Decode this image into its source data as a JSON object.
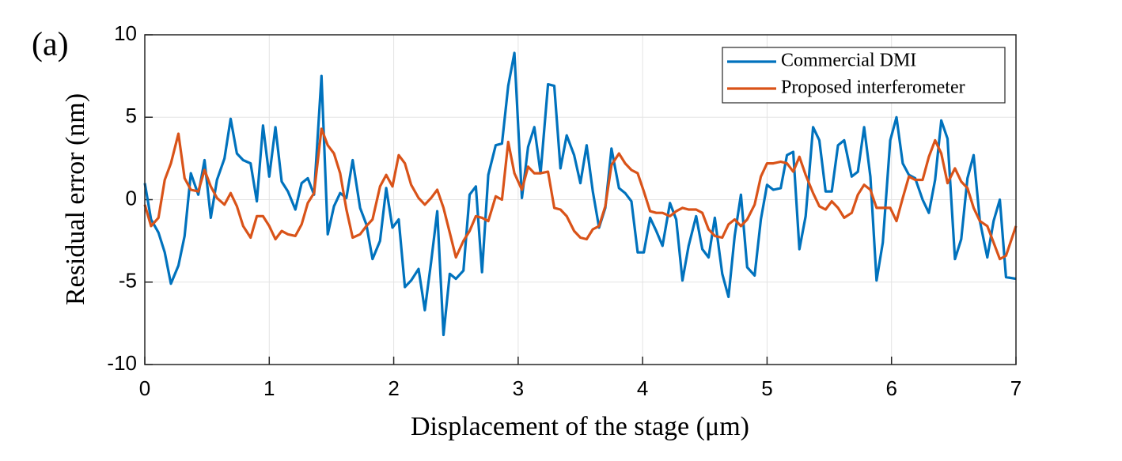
{
  "chart_data": {
    "type": "line",
    "annotation": "(a)",
    "xlabel": "Displacement of the stage (μm)",
    "ylabel": "Residual error (nm)",
    "xlim": [
      0,
      7
    ],
    "xticks": [
      0,
      1,
      2,
      3,
      4,
      5,
      6,
      7
    ],
    "ylim": [
      -10,
      10
    ],
    "yticks": [
      -10,
      -5,
      0,
      5,
      10
    ],
    "grid": true,
    "legend": "upper right",
    "x": [
      0,
      0.05,
      0.11,
      0.16,
      0.21,
      0.27,
      0.32,
      0.37,
      0.43,
      0.48,
      0.53,
      0.58,
      0.64,
      0.69,
      0.74,
      0.79,
      0.85,
      0.9,
      0.95,
      1.0,
      1.05,
      1.1,
      1.15,
      1.21,
      1.26,
      1.31,
      1.36,
      1.42,
      1.47,
      1.52,
      1.57,
      1.62,
      1.67,
      1.73,
      1.78,
      1.83,
      1.89,
      1.94,
      1.99,
      2.04,
      2.09,
      2.14,
      2.2,
      2.25,
      2.3,
      2.35,
      2.4,
      2.45,
      2.5,
      2.56,
      2.61,
      2.66,
      2.71,
      2.76,
      2.82,
      2.87,
      2.92,
      2.97,
      3.03,
      3.08,
      3.13,
      3.18,
      3.24,
      3.29,
      3.34,
      3.39,
      3.45,
      3.5,
      3.55,
      3.6,
      3.65,
      3.7,
      3.75,
      3.81,
      3.86,
      3.91,
      3.96,
      4.01,
      4.06,
      4.11,
      4.16,
      4.22,
      4.27,
      4.32,
      4.37,
      4.43,
      4.48,
      4.53,
      4.58,
      4.64,
      4.69,
      4.74,
      4.79,
      4.84,
      4.9,
      4.95,
      5.0,
      5.05,
      5.11,
      5.16,
      5.21,
      5.26,
      5.31,
      5.37,
      5.42,
      5.47,
      5.52,
      5.57,
      5.62,
      5.68,
      5.73,
      5.78,
      5.83,
      5.88,
      5.93,
      5.99,
      6.04,
      6.09,
      6.14,
      6.19,
      6.25,
      6.3,
      6.35,
      6.4,
      6.45,
      6.51,
      6.56,
      6.61,
      6.66,
      6.71,
      6.77,
      6.82,
      6.87,
      6.92,
      7.0
    ],
    "series": [
      {
        "name": "Commercial DMI",
        "color": "#0072bd",
        "values": [
          1.0,
          -1.2,
          -2.0,
          -3.2,
          -5.1,
          -4.0,
          -2.2,
          1.6,
          0.3,
          2.4,
          -1.1,
          1.2,
          2.5,
          4.9,
          2.8,
          2.4,
          2.2,
          -0.1,
          4.5,
          1.4,
          4.4,
          1.1,
          0.5,
          -0.6,
          1.0,
          1.3,
          0.3,
          7.5,
          -2.1,
          -0.4,
          0.4,
          0.1,
          2.4,
          -0.5,
          -1.5,
          -3.6,
          -2.5,
          0.7,
          -1.7,
          -1.2,
          -5.3,
          -4.9,
          -4.2,
          -6.7,
          -3.8,
          -0.7,
          -8.2,
          -4.5,
          -4.8,
          -4.3,
          0.3,
          0.8,
          -4.4,
          1.5,
          3.3,
          3.4,
          6.9,
          8.9,
          0.1,
          3.2,
          4.4,
          1.6,
          7.0,
          6.9,
          1.9,
          3.9,
          2.7,
          1.0,
          3.3,
          0.5,
          -1.7,
          -0.5,
          3.1,
          0.7,
          0.4,
          -0.1,
          -3.2,
          -3.2,
          -1.1,
          -1.9,
          -2.8,
          -0.2,
          -1.2,
          -4.9,
          -2.8,
          -1.0,
          -3.0,
          -3.5,
          -1.1,
          -4.5,
          -5.9,
          -2.2,
          0.3,
          -4.1,
          -4.6,
          -1.2,
          0.9,
          0.6,
          0.7,
          2.7,
          2.9,
          -3.0,
          -1.0,
          4.4,
          3.6,
          0.5,
          0.5,
          3.3,
          3.6,
          1.4,
          1.7,
          4.4,
          1.4,
          -4.9,
          -2.6,
          3.6,
          5.0,
          2.2,
          1.5,
          1.3,
          0.0,
          -0.8,
          1.2,
          4.8,
          3.7,
          -3.6,
          -2.4,
          1.3,
          2.7,
          -1.3,
          -3.5,
          -1.3,
          0.0,
          -4.7,
          -4.8
        ]
      },
      {
        "name": "Proposed interferometer",
        "color": "#d95319",
        "values": [
          -0.3,
          -1.6,
          -1.1,
          1.2,
          2.2,
          4.0,
          1.3,
          0.6,
          0.5,
          1.8,
          0.8,
          0.1,
          -0.3,
          0.4,
          -0.4,
          -1.6,
          -2.3,
          -1.0,
          -1.0,
          -1.6,
          -2.4,
          -1.9,
          -2.1,
          -2.2,
          -1.5,
          -0.2,
          0.4,
          4.3,
          3.3,
          2.8,
          1.6,
          -0.6,
          -2.3,
          -2.1,
          -1.6,
          -1.2,
          0.8,
          1.5,
          0.8,
          2.7,
          2.2,
          0.9,
          0.1,
          -0.3,
          0.1,
          0.6,
          -0.5,
          -2.0,
          -3.5,
          -2.5,
          -1.9,
          -1.0,
          -1.1,
          -1.3,
          0.2,
          0.0,
          3.5,
          1.6,
          0.6,
          2.0,
          1.6,
          1.6,
          1.7,
          -0.5,
          -0.6,
          -1.0,
          -1.9,
          -2.3,
          -2.4,
          -1.8,
          -1.6,
          -0.4,
          2.1,
          2.8,
          2.2,
          1.8,
          1.6,
          0.5,
          -0.7,
          -0.8,
          -0.8,
          -1.0,
          -0.7,
          -0.5,
          -0.6,
          -0.6,
          -0.8,
          -1.8,
          -2.2,
          -2.3,
          -1.5,
          -1.2,
          -1.6,
          -1.2,
          -0.3,
          1.4,
          2.2,
          2.2,
          2.3,
          2.2,
          1.7,
          2.6,
          1.5,
          0.4,
          -0.4,
          -0.6,
          -0.1,
          -0.5,
          -1.1,
          -0.8,
          0.3,
          0.9,
          0.6,
          -0.5,
          -0.5,
          -0.5,
          -1.3,
          0.1,
          1.4,
          1.2,
          1.2,
          2.6,
          3.6,
          2.8,
          1.0,
          1.9,
          1.1,
          0.7,
          -0.5,
          -1.3,
          -1.6,
          -2.6,
          -3.6,
          -3.4,
          -1.6
        ]
      }
    ]
  }
}
